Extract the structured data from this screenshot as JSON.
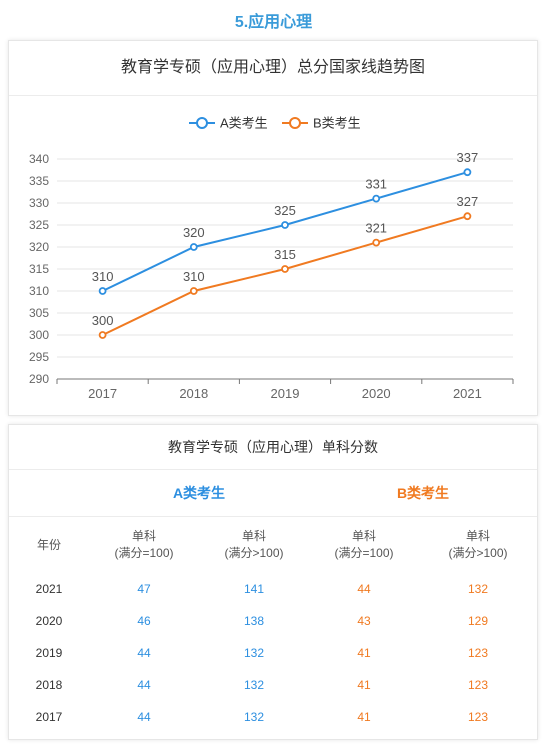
{
  "section_heading": "5.应用心理",
  "chart_data": {
    "type": "line",
    "title": "教育学专硕（应用心理）总分国家线趋势图",
    "categories": [
      "2017",
      "2018",
      "2019",
      "2020",
      "2021"
    ],
    "series": [
      {
        "name": "A类考生",
        "values": [
          310,
          320,
          325,
          331,
          337
        ],
        "color": "#2d8fe0"
      },
      {
        "name": "B类考生",
        "values": [
          300,
          310,
          315,
          321,
          327
        ],
        "color": "#f07a21"
      }
    ],
    "ylim": [
      290,
      340
    ],
    "yticks": [
      290,
      295,
      300,
      305,
      310,
      315,
      320,
      325,
      330,
      335,
      340
    ],
    "grid": true,
    "legend": "top-center",
    "xlabel": "",
    "ylabel": ""
  },
  "table": {
    "title": "教育学专硕（应用心理）单科分数",
    "group_a": "A类考生",
    "group_b": "B类考生",
    "headers": {
      "year": "年份",
      "col_a1": [
        "单科",
        "(满分=100)"
      ],
      "col_a2": [
        "单科",
        "(满分>100)"
      ],
      "col_b1": [
        "单科",
        "(满分=100)"
      ],
      "col_b2": [
        "单科",
        "(满分>100)"
      ]
    },
    "rows": [
      {
        "year": "2021",
        "a1": "47",
        "a2": "141",
        "b1": "44",
        "b2": "132"
      },
      {
        "year": "2020",
        "a1": "46",
        "a2": "138",
        "b1": "43",
        "b2": "129"
      },
      {
        "year": "2019",
        "a1": "44",
        "a2": "132",
        "b1": "41",
        "b2": "123"
      },
      {
        "year": "2018",
        "a1": "44",
        "a2": "132",
        "b1": "41",
        "b2": "123"
      },
      {
        "year": "2017",
        "a1": "44",
        "a2": "132",
        "b1": "41",
        "b2": "123"
      }
    ],
    "colors": {
      "a": "#2d8fe0",
      "b": "#f07a21"
    }
  }
}
